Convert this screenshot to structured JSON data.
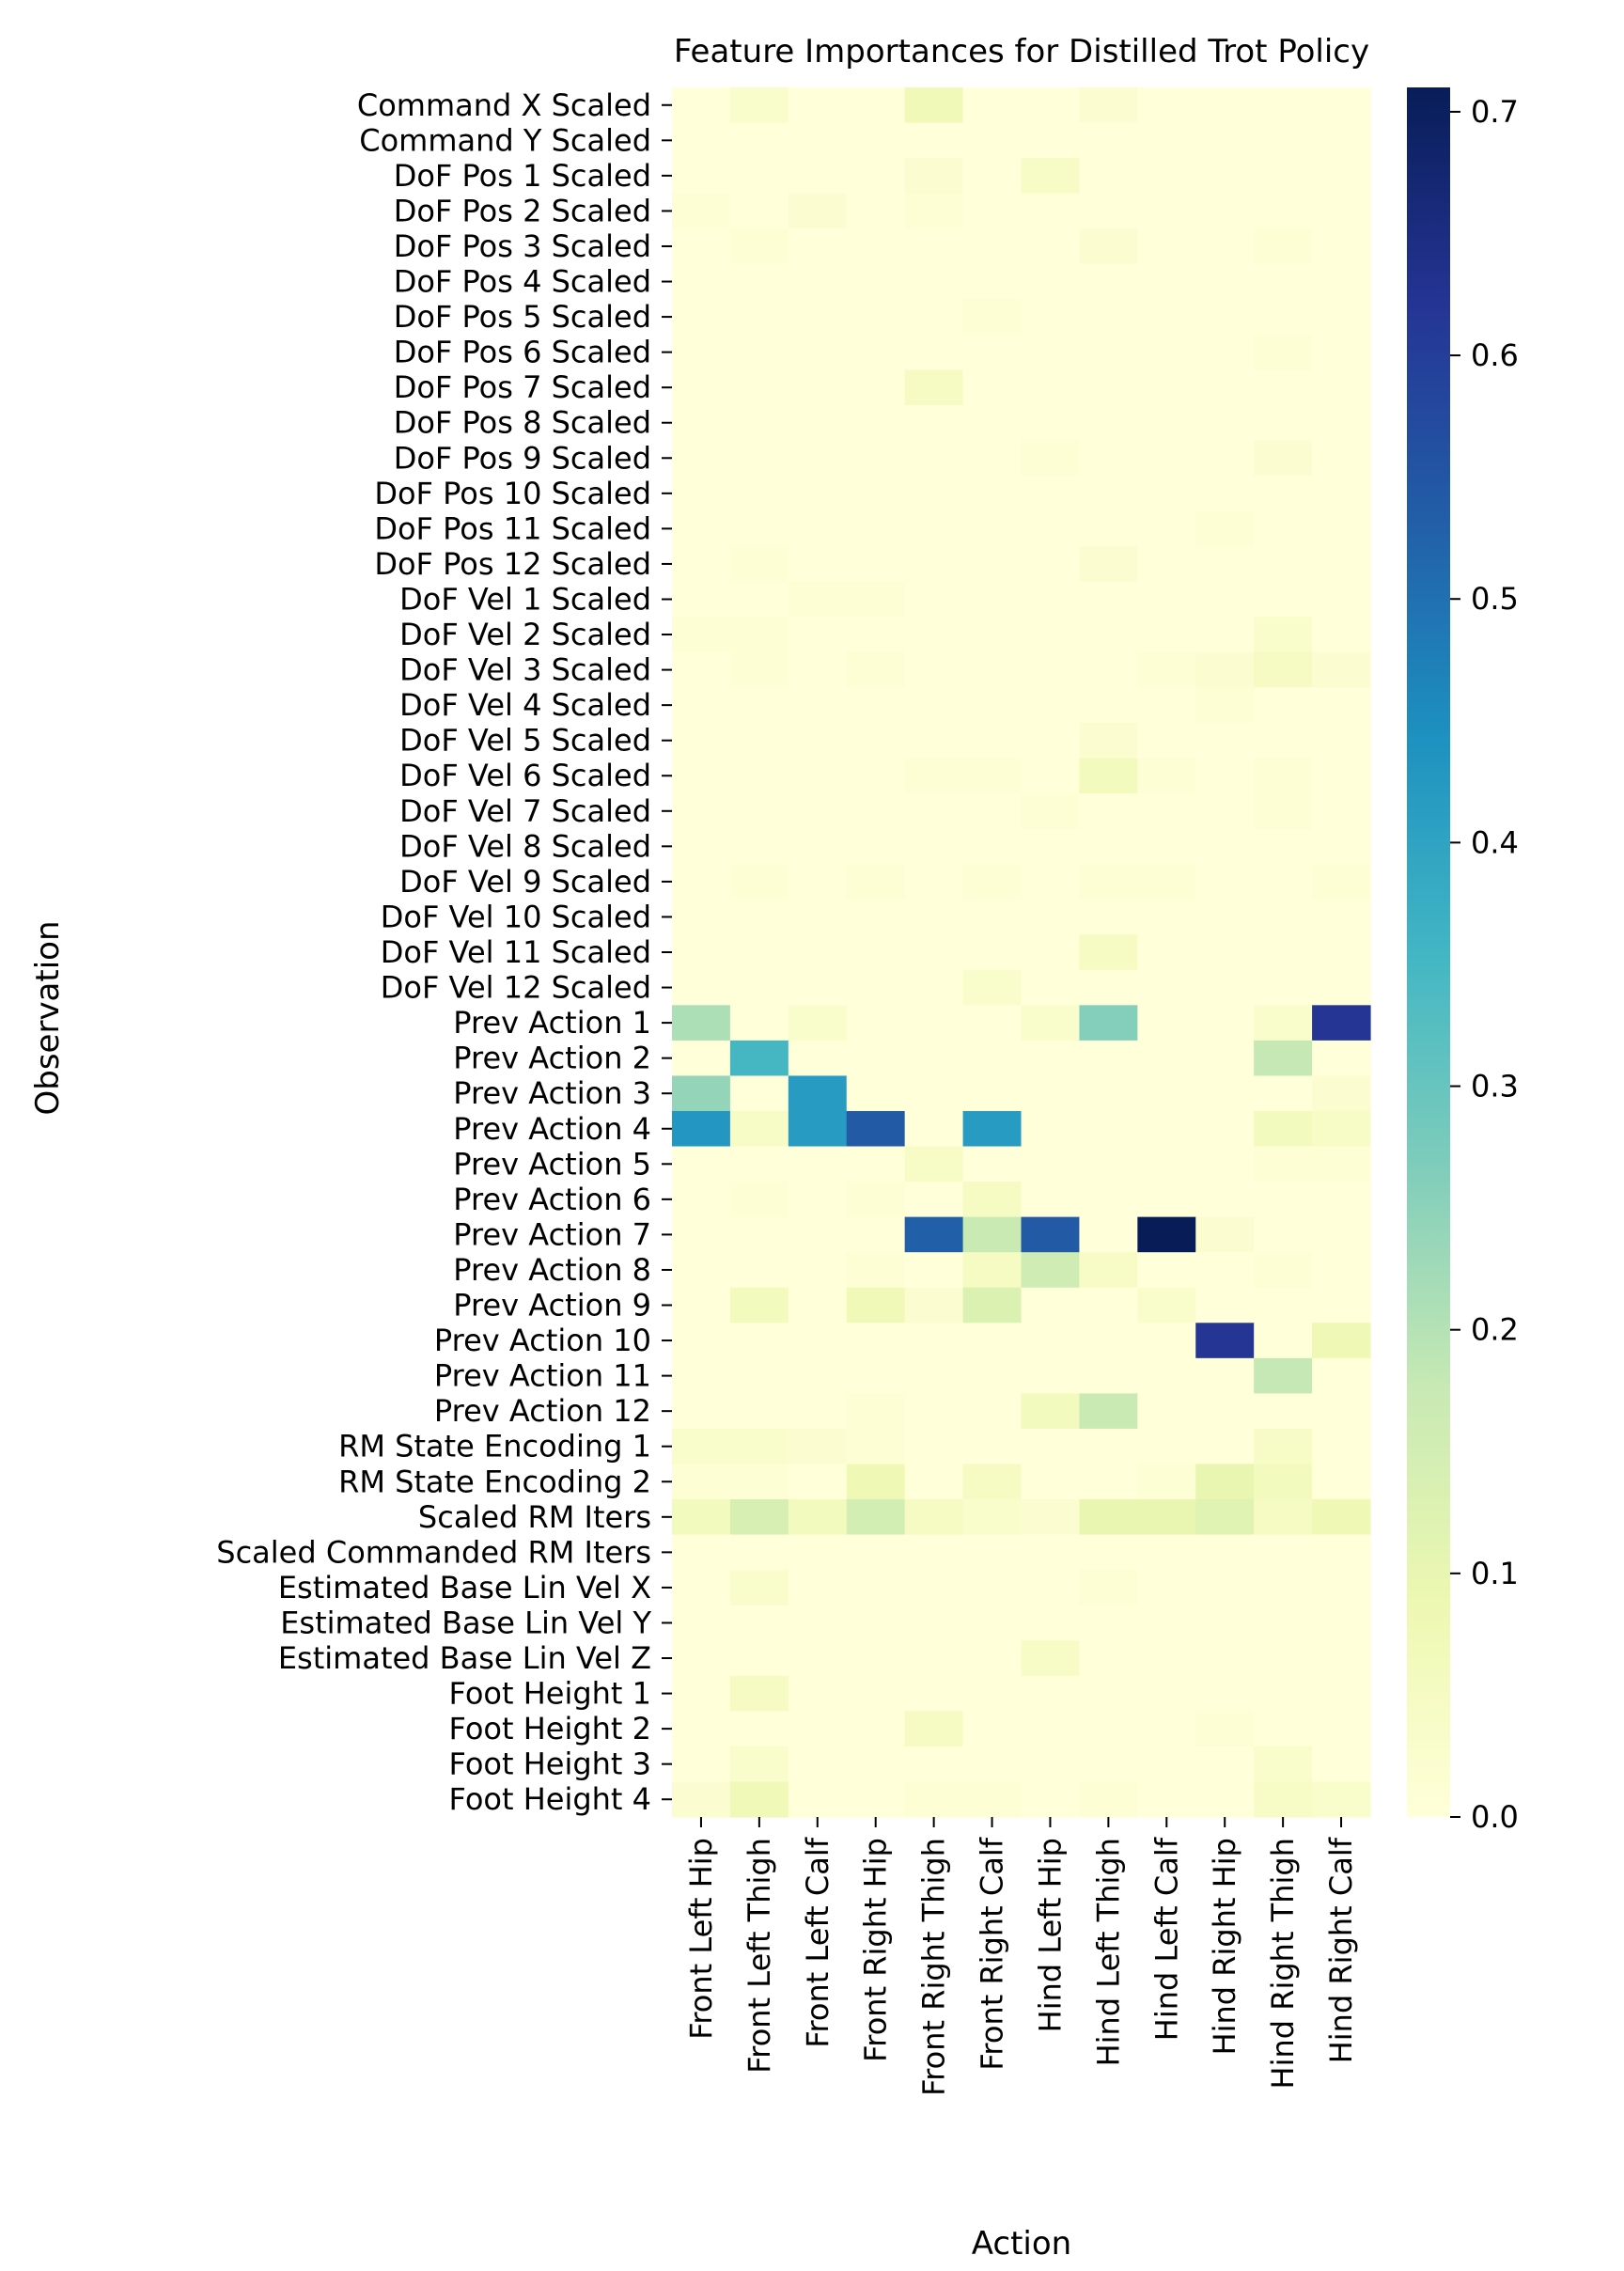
{
  "chart_data": {
    "type": "heatmap",
    "title": "Feature Importances for Distilled Trot Policy",
    "xlabel": "Action",
    "ylabel": "Observation",
    "colormap": "YlGnBu",
    "colorbar": {
      "min": 0.0,
      "max": 0.71,
      "ticks": [
        0.0,
        0.1,
        0.2,
        0.3,
        0.4,
        0.5,
        0.6,
        0.7
      ],
      "tick_labels": [
        "0.0",
        "0.1",
        "0.2",
        "0.3",
        "0.4",
        "0.5",
        "0.6",
        "0.7"
      ]
    },
    "columns": [
      "Front Left Hip",
      "Front Left Thigh",
      "Front Left Calf",
      "Front Right Hip",
      "Front Right Thigh",
      "Front Right Calf",
      "Hind Left Hip",
      "Hind Left Thigh",
      "Hind Left Calf",
      "Hind Right Hip",
      "Hind Right Thigh",
      "Hind Right Calf"
    ],
    "rows": [
      "Command X Scaled",
      "Command Y Scaled",
      "DoF Pos 1 Scaled",
      "DoF Pos 2 Scaled",
      "DoF Pos 3 Scaled",
      "DoF Pos 4 Scaled",
      "DoF Pos 5 Scaled",
      "DoF Pos 6 Scaled",
      "DoF Pos 7 Scaled",
      "DoF Pos 8 Scaled",
      "DoF Pos 9 Scaled",
      "DoF Pos 10 Scaled",
      "DoF Pos 11 Scaled",
      "DoF Pos 12 Scaled",
      "DoF Vel 1 Scaled",
      "DoF Vel 2 Scaled",
      "DoF Vel 3 Scaled",
      "DoF Vel 4 Scaled",
      "DoF Vel 5 Scaled",
      "DoF Vel 6 Scaled",
      "DoF Vel 7 Scaled",
      "DoF Vel 8 Scaled",
      "DoF Vel 9 Scaled",
      "DoF Vel 10 Scaled",
      "DoF Vel 11 Scaled",
      "DoF Vel 12 Scaled",
      "Prev Action 1",
      "Prev Action 2",
      "Prev Action 3",
      "Prev Action 4",
      "Prev Action 5",
      "Prev Action 6",
      "Prev Action 7",
      "Prev Action 8",
      "Prev Action 9",
      "Prev Action 10",
      "Prev Action 11",
      "Prev Action 12",
      "RM State Encoding 1",
      "RM State Encoding 2",
      "Scaled RM Iters",
      "Scaled Commanded RM Iters",
      "Estimated Base Lin Vel X",
      "Estimated Base Lin Vel Y",
      "Estimated Base Lin Vel Z",
      "Foot Height 1",
      "Foot Height 2",
      "Foot Height 3",
      "Foot Height 4"
    ],
    "values": [
      [
        0.0,
        0.03,
        0.0,
        0.0,
        0.07,
        0.0,
        0.0,
        0.02,
        0.0,
        0.0,
        0.0,
        0.0
      ],
      [
        0.0,
        0.0,
        0.0,
        0.0,
        0.0,
        0.0,
        0.0,
        0.0,
        0.0,
        0.0,
        0.0,
        0.0
      ],
      [
        0.0,
        0.0,
        0.0,
        0.0,
        0.02,
        0.0,
        0.04,
        0.0,
        0.0,
        0.0,
        0.0,
        0.0
      ],
      [
        0.01,
        0.0,
        0.02,
        0.0,
        0.01,
        0.0,
        0.0,
        0.0,
        0.0,
        0.0,
        0.0,
        0.0
      ],
      [
        0.0,
        0.01,
        0.0,
        0.0,
        0.0,
        0.0,
        0.0,
        0.02,
        0.0,
        0.0,
        0.01,
        0.0
      ],
      [
        0.0,
        0.0,
        0.0,
        0.0,
        0.0,
        0.0,
        0.0,
        0.0,
        0.0,
        0.0,
        0.0,
        0.0
      ],
      [
        0.0,
        0.0,
        0.0,
        0.0,
        0.0,
        0.01,
        0.0,
        0.0,
        0.0,
        0.0,
        0.0,
        0.0
      ],
      [
        0.0,
        0.0,
        0.0,
        0.0,
        0.0,
        0.0,
        0.0,
        0.0,
        0.0,
        0.0,
        0.01,
        0.0
      ],
      [
        0.0,
        0.0,
        0.0,
        0.0,
        0.05,
        0.0,
        0.0,
        0.0,
        0.0,
        0.0,
        0.0,
        0.0
      ],
      [
        0.0,
        0.0,
        0.0,
        0.0,
        0.0,
        0.0,
        0.0,
        0.0,
        0.0,
        0.0,
        0.0,
        0.0
      ],
      [
        0.0,
        0.0,
        0.0,
        0.0,
        0.0,
        0.0,
        0.01,
        0.0,
        0.0,
        0.0,
        0.02,
        0.0
      ],
      [
        0.0,
        0.0,
        0.0,
        0.0,
        0.0,
        0.0,
        0.0,
        0.0,
        0.0,
        0.0,
        0.0,
        0.0
      ],
      [
        0.0,
        0.0,
        0.0,
        0.0,
        0.0,
        0.0,
        0.0,
        0.0,
        0.0,
        0.01,
        0.0,
        0.0
      ],
      [
        0.0,
        0.01,
        0.0,
        0.0,
        0.0,
        0.0,
        0.0,
        0.02,
        0.0,
        0.0,
        0.0,
        0.0
      ],
      [
        0.0,
        0.0,
        0.01,
        0.01,
        0.0,
        0.0,
        0.0,
        0.0,
        0.0,
        0.0,
        0.0,
        0.0
      ],
      [
        0.01,
        0.01,
        0.0,
        0.0,
        0.0,
        0.0,
        0.0,
        0.0,
        0.0,
        0.0,
        0.03,
        0.0
      ],
      [
        0.0,
        0.01,
        0.0,
        0.01,
        0.0,
        0.0,
        0.0,
        0.0,
        0.01,
        0.02,
        0.05,
        0.02
      ],
      [
        0.0,
        0.0,
        0.0,
        0.0,
        0.0,
        0.0,
        0.0,
        0.0,
        0.0,
        0.01,
        0.0,
        0.0
      ],
      [
        0.0,
        0.0,
        0.0,
        0.0,
        0.0,
        0.0,
        0.0,
        0.02,
        0.0,
        0.0,
        0.0,
        0.0
      ],
      [
        0.0,
        0.0,
        0.0,
        0.0,
        0.01,
        0.01,
        0.0,
        0.06,
        0.01,
        0.0,
        0.01,
        0.0
      ],
      [
        0.0,
        0.0,
        0.0,
        0.0,
        0.0,
        0.0,
        0.01,
        0.0,
        0.0,
        0.0,
        0.01,
        0.0
      ],
      [
        0.0,
        0.0,
        0.0,
        0.0,
        0.0,
        0.0,
        0.0,
        0.0,
        0.0,
        0.0,
        0.0,
        0.0
      ],
      [
        0.0,
        0.01,
        0.0,
        0.01,
        0.0,
        0.01,
        0.0,
        0.01,
        0.01,
        0.0,
        0.0,
        0.01
      ],
      [
        0.0,
        0.0,
        0.0,
        0.0,
        0.0,
        0.0,
        0.0,
        0.0,
        0.0,
        0.0,
        0.0,
        0.0
      ],
      [
        0.0,
        0.0,
        0.0,
        0.0,
        0.0,
        0.0,
        0.0,
        0.05,
        0.0,
        0.0,
        0.0,
        0.0
      ],
      [
        0.0,
        0.0,
        0.0,
        0.0,
        0.0,
        0.03,
        0.0,
        0.0,
        0.0,
        0.0,
        0.0,
        0.0
      ],
      [
        0.21,
        0.0,
        0.03,
        0.0,
        0.0,
        0.0,
        0.03,
        0.26,
        0.0,
        0.0,
        0.03,
        0.62
      ],
      [
        0.0,
        0.35,
        0.0,
        0.0,
        0.0,
        0.0,
        0.0,
        0.0,
        0.0,
        0.0,
        0.18,
        0.0
      ],
      [
        0.24,
        0.0,
        0.42,
        0.0,
        0.0,
        0.0,
        0.0,
        0.0,
        0.0,
        0.0,
        0.0,
        0.02
      ],
      [
        0.43,
        0.04,
        0.42,
        0.54,
        0.0,
        0.42,
        0.0,
        0.0,
        0.0,
        0.0,
        0.06,
        0.04
      ],
      [
        0.0,
        0.0,
        0.0,
        0.0,
        0.04,
        0.0,
        0.0,
        0.0,
        0.0,
        0.0,
        0.01,
        0.01
      ],
      [
        0.0,
        0.01,
        0.0,
        0.01,
        0.0,
        0.05,
        0.0,
        0.0,
        0.0,
        0.0,
        0.0,
        0.0
      ],
      [
        0.0,
        0.0,
        0.0,
        0.0,
        0.53,
        0.17,
        0.54,
        0.0,
        0.71,
        0.02,
        0.0,
        0.0
      ],
      [
        0.0,
        0.0,
        0.0,
        0.01,
        0.0,
        0.05,
        0.16,
        0.04,
        0.0,
        0.0,
        0.01,
        0.0
      ],
      [
        0.0,
        0.06,
        0.0,
        0.07,
        0.02,
        0.13,
        0.0,
        0.0,
        0.03,
        0.0,
        0.0,
        0.0
      ],
      [
        0.0,
        0.0,
        0.0,
        0.0,
        0.0,
        0.0,
        0.0,
        0.0,
        0.0,
        0.62,
        0.0,
        0.08
      ],
      [
        0.0,
        0.0,
        0.0,
        0.0,
        0.0,
        0.0,
        0.0,
        0.0,
        0.0,
        0.0,
        0.18,
        0.0
      ],
      [
        0.0,
        0.0,
        0.0,
        0.01,
        0.0,
        0.0,
        0.06,
        0.17,
        0.0,
        0.0,
        0.0,
        0.0
      ],
      [
        0.03,
        0.03,
        0.02,
        0.01,
        0.0,
        0.0,
        0.0,
        0.0,
        0.0,
        0.0,
        0.04,
        0.0
      ],
      [
        0.01,
        0.01,
        0.0,
        0.08,
        0.0,
        0.05,
        0.0,
        0.0,
        0.01,
        0.1,
        0.06,
        0.0
      ],
      [
        0.06,
        0.14,
        0.06,
        0.15,
        0.05,
        0.03,
        0.02,
        0.1,
        0.1,
        0.12,
        0.05,
        0.08
      ],
      [
        0.0,
        0.0,
        0.0,
        0.0,
        0.0,
        0.0,
        0.0,
        0.0,
        0.0,
        0.0,
        0.0,
        0.0
      ],
      [
        0.0,
        0.03,
        0.0,
        0.0,
        0.0,
        0.0,
        0.0,
        0.01,
        0.0,
        0.0,
        0.0,
        0.0
      ],
      [
        0.0,
        0.0,
        0.0,
        0.0,
        0.0,
        0.0,
        0.0,
        0.0,
        0.0,
        0.0,
        0.0,
        0.0
      ],
      [
        0.0,
        0.0,
        0.0,
        0.0,
        0.0,
        0.0,
        0.04,
        0.0,
        0.0,
        0.0,
        0.0,
        0.0
      ],
      [
        0.0,
        0.05,
        0.0,
        0.0,
        0.0,
        0.0,
        0.0,
        0.0,
        0.0,
        0.0,
        0.0,
        0.0
      ],
      [
        0.0,
        0.0,
        0.0,
        0.0,
        0.05,
        0.0,
        0.0,
        0.0,
        0.0,
        0.01,
        0.0,
        0.0
      ],
      [
        0.0,
        0.03,
        0.0,
        0.0,
        0.0,
        0.0,
        0.0,
        0.0,
        0.0,
        0.0,
        0.03,
        0.0
      ],
      [
        0.02,
        0.07,
        0.0,
        0.0,
        0.01,
        0.01,
        0.0,
        0.01,
        0.0,
        0.0,
        0.04,
        0.03
      ]
    ]
  }
}
